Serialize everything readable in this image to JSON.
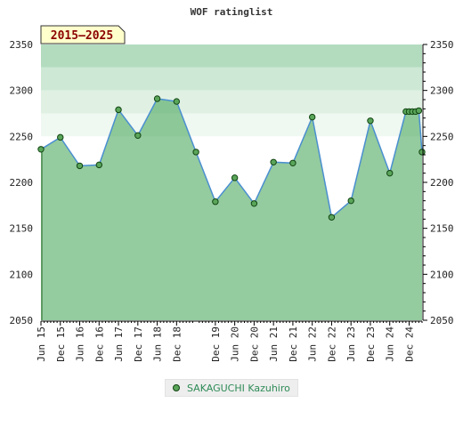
{
  "chart_data": {
    "type": "line",
    "title": "WOF ratinglist",
    "badge": "2015–2025",
    "ylim": [
      2050,
      2350
    ],
    "yticks": [
      2050,
      2100,
      2150,
      2200,
      2250,
      2300,
      2350
    ],
    "x_ticks": [
      "Jun 15",
      "Dec 15",
      "Jun 16",
      "Dec 16",
      "Jun 17",
      "Dec 17",
      "Jun 18",
      "Dec 18",
      "Dec 19",
      "Jun 20",
      "Dec 20",
      "Jun 21",
      "Dec 21",
      "Jun 22",
      "Dec 22",
      "Jun 23",
      "Dec 23",
      "Jun 24",
      "Dec 24"
    ],
    "grid": true,
    "legend_position": "bottom",
    "series": [
      {
        "name": "SAKAGUCHI Kazuhiro",
        "color": "#5aa55a",
        "line_color": "#4a8fd0",
        "points": [
          {
            "x": "Jun 15",
            "y": 2236
          },
          {
            "x": "Dec 15",
            "y": 2249
          },
          {
            "x": "Jun 16",
            "y": 2218
          },
          {
            "x": "Dec 16",
            "y": 2219
          },
          {
            "x": "Jun 17",
            "y": 2279
          },
          {
            "x": "Dec 17",
            "y": 2251
          },
          {
            "x": "Jun 18",
            "y": 2291
          },
          {
            "x": "Dec 18",
            "y": 2288
          },
          {
            "x": "Jun 19",
            "y": 2233
          },
          {
            "x": "Dec 19",
            "y": 2179
          },
          {
            "x": "Jun 20",
            "y": 2205
          },
          {
            "x": "Dec 20",
            "y": 2177
          },
          {
            "x": "Jun 21",
            "y": 2222
          },
          {
            "x": "Dec 21",
            "y": 2221
          },
          {
            "x": "Jun 22",
            "y": 2271
          },
          {
            "x": "Dec 22",
            "y": 2162
          },
          {
            "x": "Jun 23",
            "y": 2180
          },
          {
            "x": "Dec 23",
            "y": 2267
          },
          {
            "x": "Jun 24",
            "y": 2210
          },
          {
            "x": "Nov 24",
            "y": 2277
          },
          {
            "x": "Dec 24",
            "y": 2277
          },
          {
            "x": "Jan 25",
            "y": 2277
          },
          {
            "x": "Feb 25",
            "y": 2277
          },
          {
            "x": "Mar 25",
            "y": 2278
          },
          {
            "x": "Apr 25",
            "y": 2233
          }
        ]
      }
    ]
  }
}
